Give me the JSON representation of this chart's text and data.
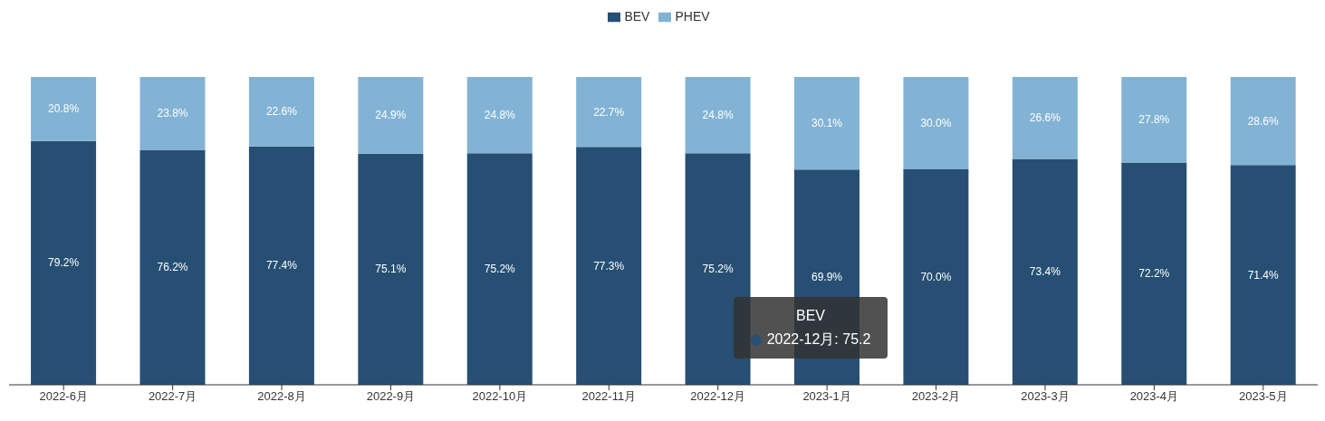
{
  "chart_data": {
    "type": "bar",
    "stacked": true,
    "legend": "top",
    "categories": [
      "2022-6月",
      "2022-7月",
      "2022-8月",
      "2022-9月",
      "2022-10月",
      "2022-11月",
      "2022-12月",
      "2023-1月",
      "2023-2月",
      "2023-3月",
      "2023-4月",
      "2023-5月"
    ],
    "series": [
      {
        "name": "BEV",
        "color": "#264f73",
        "values": [
          79.2,
          76.2,
          77.4,
          75.1,
          75.2,
          77.3,
          75.2,
          69.9,
          70.0,
          73.4,
          72.2,
          71.4
        ],
        "value_labels": [
          "79.2%",
          "76.2%",
          "77.4%",
          "75.1%",
          "75.2%",
          "77.3%",
          "75.2%",
          "69.9%",
          "70.0%",
          "73.4%",
          "72.2%",
          "71.4%"
        ]
      },
      {
        "name": "PHEV",
        "color": "#82b3d5",
        "values": [
          20.8,
          23.8,
          22.6,
          24.9,
          24.8,
          22.7,
          24.8,
          30.1,
          30.0,
          26.6,
          27.8,
          28.6
        ],
        "value_labels": [
          "20.8%",
          "23.8%",
          "22.6%",
          "24.9%",
          "24.8%",
          "22.7%",
          "24.8%",
          "30.1%",
          "30.0%",
          "26.6%",
          "27.8%",
          "28.6%"
        ]
      }
    ],
    "annotations": [
      "BEV",
      "2022-12月: 75.2"
    ]
  }
}
